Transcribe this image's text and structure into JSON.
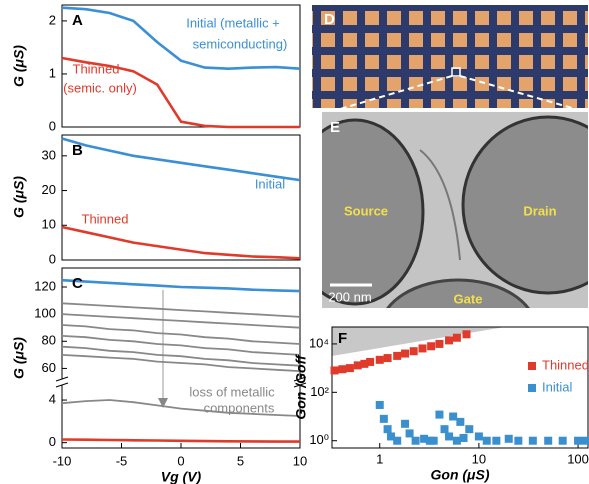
{
  "chart_data": [
    {
      "type": "line",
      "label": "A",
      "ylabel": "G (μS)",
      "x": [
        -10,
        -8,
        -6,
        -4,
        -2,
        0,
        2,
        4,
        6,
        8,
        10
      ],
      "xlim": [
        -10,
        10
      ],
      "ylim": [
        0,
        2.3
      ],
      "yticks": [
        0,
        1,
        2
      ],
      "series": [
        {
          "color": "#3b8fd4",
          "values": [
            2.25,
            2.22,
            2.15,
            2.0,
            1.6,
            1.25,
            1.12,
            1.1,
            1.12,
            1.13,
            1.1
          ]
        },
        {
          "color": "#e03a2a",
          "values": [
            1.3,
            1.22,
            1.15,
            1.05,
            0.8,
            0.1,
            0.02,
            0,
            0,
            0,
            0
          ]
        }
      ],
      "annotations": [
        {
          "text": "Initial (metallic +",
          "color": "#3b8fd4"
        },
        {
          "text": "semiconducting)",
          "color": "#3b8fd4"
        },
        {
          "text": "Thinned",
          "color": "#e03a2a"
        },
        {
          "text": "(semic. only)",
          "color": "#e03a2a"
        }
      ]
    },
    {
      "type": "line",
      "label": "B",
      "ylabel": "G (μS)",
      "x": [
        -10,
        -8,
        -6,
        -4,
        -2,
        0,
        2,
        4,
        6,
        8,
        10
      ],
      "xlim": [
        -10,
        10
      ],
      "ylim": [
        0,
        36
      ],
      "yticks": [
        0,
        10,
        20,
        30
      ],
      "series": [
        {
          "name": "Initial",
          "color": "#3b8fd4",
          "values": [
            35,
            33,
            31.5,
            30,
            29,
            28,
            27,
            26,
            25,
            24,
            23
          ]
        },
        {
          "name": "Thinned",
          "color": "#e03a2a",
          "values": [
            9.5,
            8,
            6.5,
            5,
            4,
            3,
            2,
            1.5,
            1,
            0.8,
            0.5
          ]
        }
      ]
    },
    {
      "type": "line",
      "label": "C",
      "x": [
        -10,
        -8,
        -6,
        -4,
        -2,
        0,
        2,
        4,
        6,
        8,
        10
      ],
      "xlim": [
        -10,
        10
      ],
      "ylim": [
        50,
        134
      ],
      "yticks": [
        60,
        80,
        100,
        120
      ],
      "series": [
        {
          "color": "#3b8fd4",
          "values": [
            125,
            124,
            123,
            122,
            121,
            120,
            119.5,
            119,
            118,
            117.5,
            117
          ]
        },
        {
          "color": "#888888",
          "values": [
            108,
            107,
            106,
            105,
            104,
            103,
            102,
            101,
            100,
            99,
            98
          ]
        },
        {
          "color": "#888888",
          "values": [
            100,
            99,
            98,
            97,
            96,
            95,
            94,
            93,
            92,
            91,
            90
          ]
        },
        {
          "color": "#888888",
          "values": [
            92,
            91,
            89,
            88,
            86,
            85,
            83,
            82,
            80,
            79,
            78
          ]
        },
        {
          "color": "#888888",
          "values": [
            84,
            83,
            81,
            80,
            78,
            77,
            75,
            74,
            72,
            71,
            70
          ]
        },
        {
          "color": "#888888",
          "values": [
            76,
            75,
            73,
            72,
            70,
            69,
            67,
            66,
            64,
            63,
            62
          ]
        },
        {
          "color": "#888888",
          "values": [
            70,
            69,
            68,
            67,
            65,
            64,
            63,
            61,
            60,
            59,
            58
          ]
        }
      ]
    },
    {
      "type": "line",
      "ylabel": "G (μS)",
      "xlabel": "Vg (V)",
      "x": [
        -10,
        -8,
        -6,
        -4,
        -2,
        0,
        2,
        4,
        6,
        8,
        10
      ],
      "xlim": [
        -10,
        10
      ],
      "ylim": [
        -0.5,
        5.6
      ],
      "yticks": [
        0,
        4
      ],
      "xticks": [
        -10,
        -5,
        0,
        5,
        10
      ],
      "series": [
        {
          "color": "#888888",
          "values": [
            3.7,
            3.9,
            4.0,
            3.8,
            3.5,
            3.2,
            3.0,
            2.8,
            2.7,
            2.6,
            2.5
          ]
        },
        {
          "color": "#e03a2a",
          "values": [
            0.3,
            0.28,
            0.25,
            0.22,
            0.2,
            0.18,
            0.15,
            0.13,
            0.12,
            0.1,
            0.1
          ]
        }
      ],
      "annotations": [
        {
          "text": "loss of metallic",
          "color": "#888888"
        },
        {
          "text": "components",
          "color": "#888888"
        }
      ]
    },
    {
      "type": "scatter",
      "label": "F",
      "xlabel": "Gon (μS)",
      "ylabel": "Gon /Goff",
      "log": true,
      "legend": "right",
      "xlim": [
        0.33,
        126
      ],
      "ylim": [
        0.5,
        50000
      ],
      "xticks": [
        1,
        10,
        100
      ],
      "yticks": [
        {
          "value": 1,
          "label": "10⁰"
        },
        {
          "value": 100,
          "label": "10²"
        },
        {
          "value": 10000,
          "label": "10⁴"
        }
      ],
      "series": [
        {
          "name": "Thinned",
          "color": "#e03a2a",
          "x": [
            0.35,
            0.42,
            0.5,
            0.6,
            0.7,
            0.8,
            1.0,
            1.2,
            1.5,
            1.8,
            2.2,
            2.7,
            3.3,
            4.0,
            5.0,
            6.0,
            7.5
          ],
          "values": [
            800,
            900,
            1000,
            1300,
            1500,
            1800,
            2200,
            2600,
            3200,
            4000,
            5000,
            6500,
            8000,
            10000,
            14000,
            18000,
            25000
          ]
        },
        {
          "name": "Initial",
          "color": "#3a8fcf",
          "x": [
            1.0,
            1.1,
            1.2,
            1.3,
            1.5,
            1.8,
            2.0,
            2.3,
            2.8,
            3.2,
            3.5,
            4,
            4.5,
            5,
            5.5,
            6,
            6.5,
            7,
            8,
            10,
            12,
            15,
            20,
            25,
            35,
            50,
            70,
            100,
            120
          ],
          "values": [
            30,
            8,
            3,
            1.5,
            1,
            5,
            2,
            1,
            1.2,
            1,
            1,
            12,
            3,
            1.5,
            10,
            1,
            6,
            1.3,
            3,
            1.5,
            1,
            1,
            1.2,
            1,
            1,
            1,
            1,
            1,
            1
          ]
        }
      ]
    }
  ],
  "panel_d": {
    "label": "D"
  },
  "panel_e": {
    "label": "E",
    "source": "Source",
    "drain": "Drain",
    "gate": "Gate",
    "scale": "200 nm"
  }
}
